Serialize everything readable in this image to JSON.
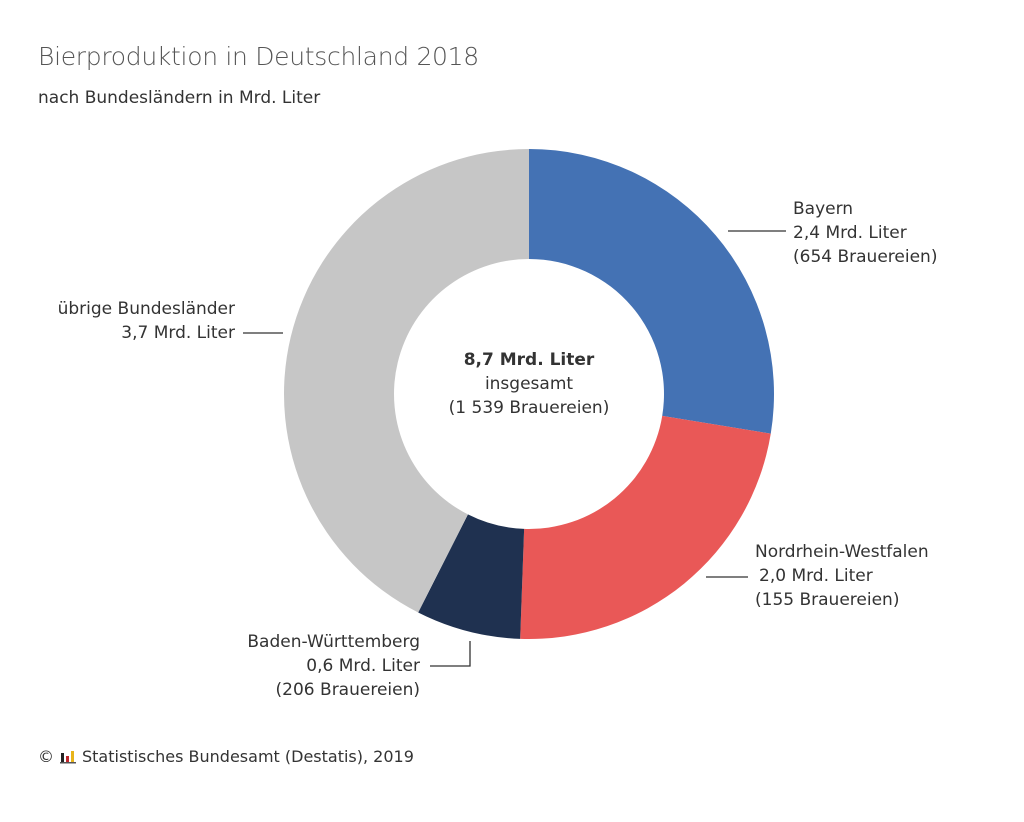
{
  "title": "Bierproduktion in Deutschland 2018",
  "subtitle": "nach Bundesländern in Mrd. Liter",
  "chart_data": {
    "type": "pie",
    "variant": "donut",
    "unit": "Mrd. Liter",
    "slices": [
      {
        "name": "Bayern",
        "value": 2.4,
        "value_label": "2,4 Mrd. Liter",
        "note": "(654 Brauereien)",
        "color": "#4472b4"
      },
      {
        "name": "Nordrhein-Westfalen",
        "value": 2.0,
        "value_label": "2,0 Mrd. Liter",
        "note": "(155 Brauereien)",
        "color": "#e95857"
      },
      {
        "name": "Baden-Württemberg",
        "value": 0.6,
        "value_label": "0,6 Mrd. Liter",
        "note": "(206 Brauereien)",
        "color": "#1f3150"
      },
      {
        "name": "übrige Bundesländer",
        "value": 3.7,
        "value_label": "3,7 Mrd. Liter",
        "note": "",
        "color": "#c6c6c6"
      }
    ],
    "center": {
      "total": "8,7 Mrd. Liter",
      "text": "insgesamt",
      "note": "(1 539 Brauereien)"
    }
  },
  "source": "Statistisches Bundesamt (Destatis), 2019",
  "copyright_symbol": "©",
  "logo_icon": "destatis-logo-icon"
}
